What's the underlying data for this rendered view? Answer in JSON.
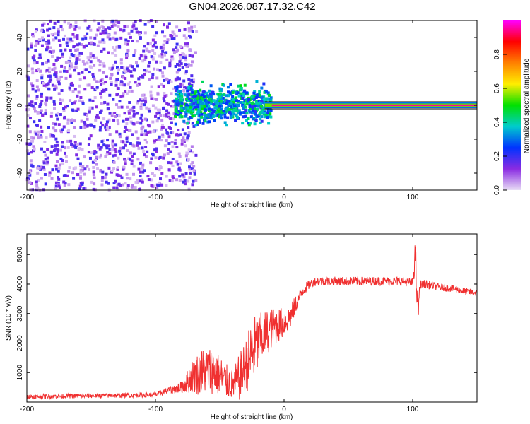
{
  "title": "GN04.2026.087.17.32.C42",
  "chart_data": [
    {
      "type": "heatmap",
      "xlabel": "Height of straight line (km)",
      "ylabel": "Frequency (Hz)",
      "xlim": [
        -200,
        150
      ],
      "ylim": [
        -50,
        50
      ],
      "x_ticks": [
        -200,
        -100,
        0,
        100
      ],
      "y_ticks": [
        -40,
        -20,
        0,
        20,
        40
      ],
      "grid": false,
      "colorbar": {
        "label": "Normalized spectral amplitude",
        "range": [
          0,
          1
        ],
        "ticks": [
          "0.0",
          "0.2",
          "0.4",
          "0.6",
          "0.8"
        ],
        "colors": [
          "#e8ddf5",
          "#8a2be2",
          "#0033ff",
          "#00cccc",
          "#00e000",
          "#ffee00",
          "#ff8000",
          "#ff0000",
          "#ff00ff"
        ]
      },
      "features": {
        "noise_region_km": [
          -200,
          -68
        ],
        "noise_amplitude": 0.15,
        "burst_region_km": [
          -85,
          -10
        ],
        "burst_band_hz": [
          -8,
          8
        ],
        "burst_peak_amplitude": 0.45,
        "carrier_line_km": [
          -15,
          150
        ],
        "carrier_frequency_hz": 0,
        "carrier_amplitude": 0.95
      }
    },
    {
      "type": "line",
      "xlabel": "Height of straight line (km)",
      "ylabel": "SNR (10 * v/v)",
      "xlim": [
        -200,
        150
      ],
      "ylim": [
        0,
        5700
      ],
      "x_ticks": [
        -200,
        -100,
        0,
        100
      ],
      "y_ticks": [
        1000,
        2000,
        3000,
        4000,
        5000
      ],
      "grid": false,
      "line_color": "#f03030",
      "series_x": [
        -200,
        -180,
        -160,
        -140,
        -120,
        -100,
        -90,
        -80,
        -75,
        -70,
        -65,
        -60,
        -55,
        -50,
        -45,
        -40,
        -35,
        -30,
        -25,
        -20,
        -15,
        -10,
        -5,
        0,
        5,
        10,
        15,
        20,
        25,
        30,
        40,
        50,
        60,
        70,
        80,
        90,
        100,
        102,
        104,
        106,
        110,
        120,
        130,
        140,
        150
      ],
      "series_mean": [
        180,
        200,
        210,
        220,
        230,
        250,
        400,
        500,
        700,
        900,
        1000,
        1100,
        1050,
        900,
        700,
        600,
        800,
        1200,
        1700,
        2000,
        2300,
        2500,
        2600,
        2700,
        2900,
        3400,
        3800,
        4000,
        4100,
        4100,
        4100,
        4100,
        4100,
        4100,
        4100,
        4100,
        4050,
        5000,
        3000,
        4000,
        4000,
        3900,
        3850,
        3750,
        3700
      ],
      "series_noise": [
        80,
        80,
        80,
        80,
        80,
        80,
        120,
        200,
        400,
        600,
        800,
        800,
        800,
        700,
        600,
        500,
        800,
        900,
        1200,
        1000,
        800,
        700,
        600,
        500,
        400,
        300,
        200,
        150,
        150,
        150,
        150,
        150,
        150,
        150,
        150,
        150,
        150,
        600,
        600,
        150,
        150,
        130,
        120,
        120,
        110
      ]
    }
  ]
}
